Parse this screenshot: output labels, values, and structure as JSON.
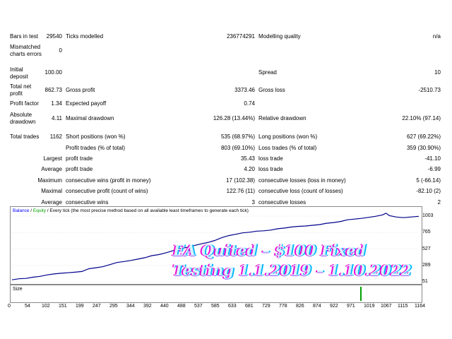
{
  "report": {
    "bars_in_test": {
      "label": "Bars in test",
      "value": "29540"
    },
    "ticks_modelled": {
      "label": "Ticks modelled",
      "value": "236774291"
    },
    "modelling_quality": {
      "label": "Modelling quality",
      "value": "n/a"
    },
    "mismatched": {
      "label": "Mismatched charts errors",
      "value": "0"
    },
    "initial_deposit": {
      "label": "Initial deposit",
      "value": "100.00"
    },
    "spread": {
      "label": "Spread",
      "value": "10"
    },
    "total_net_profit": {
      "label": "Total net profit",
      "value": "862.73"
    },
    "gross_profit": {
      "label": "Gross profit",
      "value": "3373.46"
    },
    "gross_loss": {
      "label": "Gross loss",
      "value": "-2510.73"
    },
    "profit_factor": {
      "label": "Profit factor",
      "value": "1.34"
    },
    "expected_payoff": {
      "label": "Expected payoff",
      "value": "0.74"
    },
    "absolute_drawdown": {
      "label": "Absolute drawdown",
      "value": "4.11"
    },
    "maximal_drawdown": {
      "label": "Maximal drawdown",
      "value": "126.28 (13.44%)"
    },
    "relative_drawdown": {
      "label": "Relative drawdown",
      "value": "22.10% (97.14)"
    },
    "total_trades": {
      "label": "Total trades",
      "value": "1162"
    },
    "short_positions": {
      "label": "Short positions (won %)",
      "value": "535 (68.97%)"
    },
    "long_positions": {
      "label": "Long positions (won %)",
      "value": "627 (69.22%)"
    },
    "profit_trades": {
      "label": "Profit trades (% of total)",
      "value": "803 (69.10%)"
    },
    "loss_trades": {
      "label": "Loss trades (% of total)",
      "value": "359 (30.90%)"
    },
    "largest": {
      "label": "Largest",
      "profit_label": "profit trade",
      "profit_value": "35.43",
      "loss_label": "loss trade",
      "loss_value": "-41.10"
    },
    "average": {
      "label": "Average",
      "profit_label": "profit trade",
      "profit_value": "4.20",
      "loss_label": "loss trade",
      "loss_value": "-6.99"
    },
    "maximum": {
      "label": "Maximum",
      "wins_label": "consecutive wins (profit in money)",
      "wins_value": "17 (102.38)",
      "losses_label": "consecutive losses (loss in money)",
      "losses_value": "5 (-66.14)"
    },
    "maximal": {
      "label": "Maximal",
      "wins_label": "consecutive profit (count of wins)",
      "wins_value": "122.76 (11)",
      "losses_label": "consecutive loss (count of losses)",
      "losses_value": "-82.10 (2)"
    },
    "average_consec": {
      "label": "Average",
      "wins_label": "consecutive wins",
      "wins_value": "3",
      "losses_label": "consecutive losses",
      "losses_value": "2"
    }
  },
  "chart": {
    "legend_balance": "Balance",
    "legend_sep": " / ",
    "legend_equity": "Equity",
    "legend_rest": " / Every tick (the most precise method based on all available least timeframes to generate each tick)",
    "size_label": "Size",
    "colors": {
      "balance": "#00008b",
      "legend_balance": "#0000ff",
      "legend_equity": "#00a000",
      "size_bar": "#00a000",
      "grid": "#cfcfcf"
    }
  },
  "chart_data": {
    "type": "line",
    "y_ticks": [
      "1003",
      "765",
      "527",
      "289",
      "51"
    ],
    "x_ticks": [
      "0",
      "54",
      "102",
      "151",
      "199",
      "247",
      "295",
      "344",
      "392",
      "440",
      "488",
      "537",
      "585",
      "633",
      "681",
      "729",
      "778",
      "826",
      "874",
      "922",
      "971",
      "1019",
      "1067",
      "1115",
      "1164"
    ],
    "ylim": [
      51,
      1003
    ],
    "xlim": [
      0,
      1164
    ],
    "series": [
      {
        "values": [
          [
            0,
            80
          ],
          [
            20,
            95
          ],
          [
            40,
            100
          ],
          [
            60,
            118
          ],
          [
            80,
            130
          ],
          [
            100,
            150
          ],
          [
            120,
            165
          ],
          [
            140,
            175
          ],
          [
            160,
            182
          ],
          [
            180,
            190
          ],
          [
            200,
            200
          ],
          [
            220,
            240
          ],
          [
            240,
            255
          ],
          [
            260,
            270
          ],
          [
            280,
            300
          ],
          [
            300,
            330
          ],
          [
            320,
            345
          ],
          [
            340,
            360
          ],
          [
            360,
            380
          ],
          [
            380,
            400
          ],
          [
            400,
            430
          ],
          [
            420,
            445
          ],
          [
            440,
            470
          ],
          [
            460,
            500
          ],
          [
            480,
            530
          ],
          [
            500,
            550
          ],
          [
            520,
            575
          ],
          [
            540,
            600
          ],
          [
            560,
            620
          ],
          [
            580,
            650
          ],
          [
            600,
            690
          ],
          [
            620,
            720
          ],
          [
            640,
            740
          ],
          [
            660,
            760
          ],
          [
            680,
            770
          ],
          [
            700,
            785
          ],
          [
            720,
            790
          ],
          [
            740,
            800
          ],
          [
            760,
            820
          ],
          [
            780,
            830
          ],
          [
            800,
            845
          ],
          [
            820,
            855
          ],
          [
            840,
            860
          ],
          [
            860,
            870
          ],
          [
            880,
            880
          ],
          [
            900,
            900
          ],
          [
            920,
            910
          ],
          [
            940,
            925
          ],
          [
            960,
            950
          ],
          [
            980,
            960
          ],
          [
            1000,
            970
          ],
          [
            1020,
            985
          ],
          [
            1040,
            1000
          ],
          [
            1060,
            1020
          ],
          [
            1070,
            1045
          ],
          [
            1080,
            1010
          ],
          [
            1100,
            990
          ],
          [
            1120,
            980
          ],
          [
            1140,
            990
          ],
          [
            1164,
            1000
          ]
        ]
      }
    ]
  },
  "watermark": {
    "line1": "EA Quited – $100 Fixed",
    "line2": "Testing 1.1.2019 – 1.10.2022"
  }
}
